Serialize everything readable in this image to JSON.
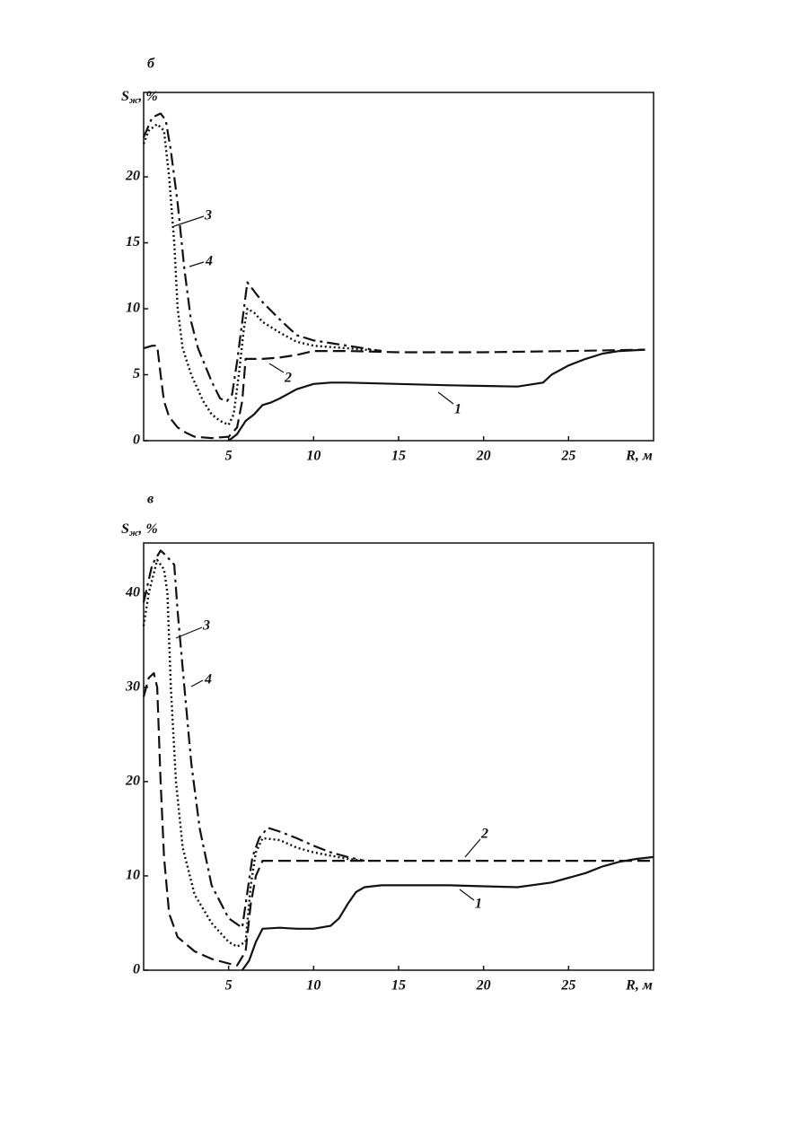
{
  "chart_data": [
    {
      "type": "line",
      "panel": "б",
      "ylabel_symbol": "S",
      "ylabel_subscript": "ж",
      "ylabel_unit": ", %",
      "xlabel": "R, м",
      "xlim": [
        0,
        30
      ],
      "xticks": [
        5,
        10,
        15,
        20,
        25
      ],
      "ylim": [
        0,
        26.4
      ],
      "yticks": [
        0,
        5,
        10,
        15,
        20
      ],
      "series": [
        {
          "name": "1",
          "color": "#111111",
          "style": "solid",
          "x": [
            5,
            5.5,
            6,
            6.5,
            7,
            7.5,
            8,
            9,
            10,
            11,
            12,
            15,
            18,
            20,
            22,
            23.5,
            24,
            25,
            26,
            27,
            28,
            29.5
          ],
          "values": [
            0,
            0.5,
            1.5,
            2,
            2.7,
            2.9,
            3.2,
            3.9,
            4.3,
            4.4,
            4.4,
            4.3,
            4.2,
            4.15,
            4.1,
            4.4,
            5,
            5.7,
            6.2,
            6.6,
            6.8,
            6.9
          ]
        },
        {
          "name": "2",
          "color": "#111111",
          "style": "dashed",
          "x": [
            0,
            0.5,
            0.8,
            1,
            1.2,
            1.5,
            2,
            2.5,
            3,
            4,
            5,
            5.5,
            5.8,
            6,
            7,
            8,
            9,
            10,
            12,
            15,
            20,
            25,
            29.5
          ],
          "values": [
            7,
            7.2,
            7.2,
            5,
            3,
            1.8,
            1,
            0.6,
            0.3,
            0.2,
            0.3,
            1,
            3,
            6.2,
            6.2,
            6.3,
            6.5,
            6.8,
            6.8,
            6.7,
            6.7,
            6.8,
            6.9
          ]
        },
        {
          "name": "3",
          "color": "#111111",
          "style": "dotted",
          "x": [
            0,
            0.3,
            0.8,
            1.2,
            1.5,
            1.8,
            2,
            2.3,
            2.8,
            3.5,
            4,
            4.5,
            5,
            5.3,
            5.6,
            5.9,
            6.1,
            6.5,
            7,
            8,
            9,
            10,
            12,
            14
          ],
          "values": [
            22.5,
            23.5,
            24,
            23.5,
            20,
            15,
            10,
            7,
            5,
            3,
            2,
            1.5,
            1.2,
            2,
            5,
            8.5,
            10,
            9.7,
            9,
            8.2,
            7.5,
            7.2,
            7,
            6.8
          ]
        },
        {
          "name": "4",
          "color": "#111111",
          "style": "dashdot",
          "x": [
            0,
            0.5,
            1,
            1.3,
            1.6,
            2,
            2.4,
            2.8,
            3.2,
            4,
            4.5,
            4.9,
            5.2,
            5.5,
            5.8,
            6.1,
            6.4,
            7,
            8,
            9,
            10,
            12,
            14
          ],
          "values": [
            23,
            24.5,
            24.8,
            24.3,
            22,
            18,
            13,
            9,
            7,
            4.5,
            3.2,
            3,
            3.5,
            6,
            9,
            12,
            11.5,
            10.5,
            9.2,
            8,
            7.6,
            7.2,
            6.8
          ]
        }
      ]
    },
    {
      "type": "line",
      "panel": "в",
      "ylabel_symbol": "S",
      "ylabel_subscript": "ж",
      "ylabel_unit": ", %",
      "xlabel": "R, м",
      "xlim": [
        0,
        30
      ],
      "xticks": [
        5,
        10,
        15,
        20,
        25
      ],
      "ylim": [
        0,
        45.3
      ],
      "yticks": [
        0,
        10,
        20,
        30,
        40
      ],
      "series": [
        {
          "name": "1",
          "color": "#111111",
          "style": "solid",
          "x": [
            5.8,
            6.2,
            6.6,
            7,
            8,
            9,
            10,
            11,
            11.5,
            12,
            12.5,
            13,
            14,
            18,
            20,
            22,
            24,
            26,
            27,
            28,
            29,
            30
          ],
          "values": [
            0,
            1,
            3,
            4.4,
            4.5,
            4.4,
            4.4,
            4.7,
            5.5,
            7,
            8.3,
            8.8,
            9,
            9,
            8.9,
            8.8,
            9.3,
            10.3,
            11,
            11.5,
            11.8,
            12
          ]
        },
        {
          "name": "2",
          "color": "#111111",
          "style": "dashed",
          "x": [
            0,
            0.3,
            0.6,
            0.8,
            1,
            1.2,
            1.5,
            2,
            3,
            4,
            5,
            5.5,
            6,
            6.3,
            6.6,
            7,
            10,
            20,
            30
          ],
          "values": [
            29,
            31,
            31.5,
            30,
            20,
            12,
            6,
            3.5,
            2,
            1.2,
            0.7,
            0.5,
            2,
            7,
            10,
            11.6,
            11.6,
            11.6,
            11.6
          ]
        },
        {
          "name": "3",
          "color": "#111111",
          "style": "dotted",
          "x": [
            0,
            0.3,
            0.8,
            1.2,
            1.4,
            1.6,
            1.9,
            2.3,
            3,
            4,
            5,
            5.5,
            6,
            6.3,
            6.6,
            7,
            8,
            9,
            10,
            12,
            13
          ],
          "values": [
            36.5,
            40,
            43.5,
            42.5,
            40,
            30,
            20,
            13,
            8,
            5,
            3,
            2.5,
            3,
            9,
            12.5,
            14,
            13.8,
            13,
            12.5,
            11.8,
            11.6
          ]
        },
        {
          "name": "4",
          "color": "#111111",
          "style": "dashdot",
          "x": [
            0,
            0.5,
            1,
            1.3,
            1.8,
            2,
            2.4,
            2.8,
            3.3,
            4,
            5,
            5.8,
            6,
            6.4,
            6.8,
            7.3,
            8,
            9,
            10,
            11,
            12,
            13
          ],
          "values": [
            39,
            43,
            44.5,
            44,
            43,
            38,
            30,
            22,
            15,
            9,
            5.5,
            4.5,
            7,
            12,
            14,
            15.1,
            14.7,
            14,
            13.2,
            12.5,
            12,
            11.6
          ]
        }
      ]
    }
  ]
}
